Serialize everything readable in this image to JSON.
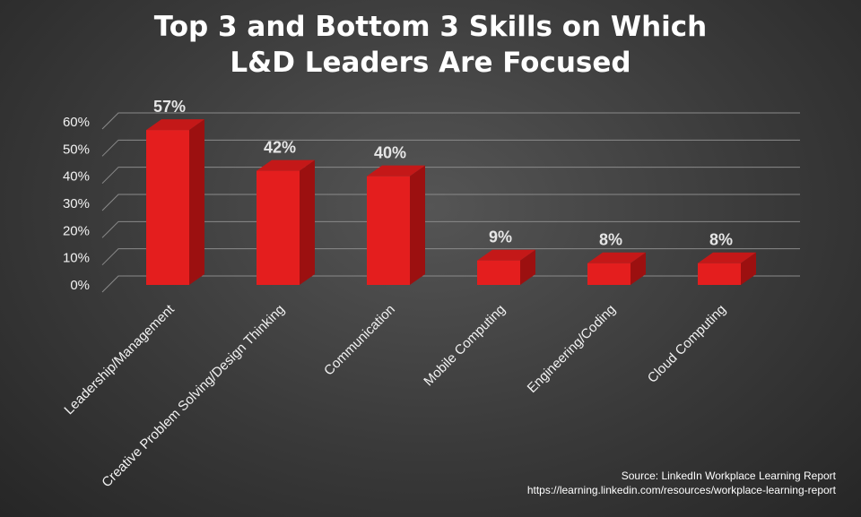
{
  "chart_data": {
    "type": "bar",
    "title_lines": [
      "Top 3 and Bottom 3 Skills on Which",
      "L&D Leaders Are Focused"
    ],
    "categories": [
      "Leadership/Management",
      "Creative Problem Solving/Design Thinking",
      "Communication",
      "Mobile Computing",
      "Engineering/Coding",
      "Cloud Computing"
    ],
    "values": [
      57,
      42,
      40,
      9,
      8,
      8
    ],
    "data_labels": [
      "57%",
      "42%",
      "40%",
      "9%",
      "8%",
      "8%"
    ],
    "ylim": [
      0,
      60
    ],
    "yticks": [
      "0%",
      "10%",
      "20%",
      "30%",
      "40%",
      "50%",
      "60%"
    ],
    "grid": true,
    "legend": "none",
    "bar_color": "#e41e1e",
    "bar_side_color": "#9c1010",
    "bar_top_color": "#c41818"
  },
  "source": {
    "line1": "Source: LinkedIn Workplace Learning Report",
    "line2": "https://learning.linkedin.com/resources/workplace-learning-report"
  }
}
